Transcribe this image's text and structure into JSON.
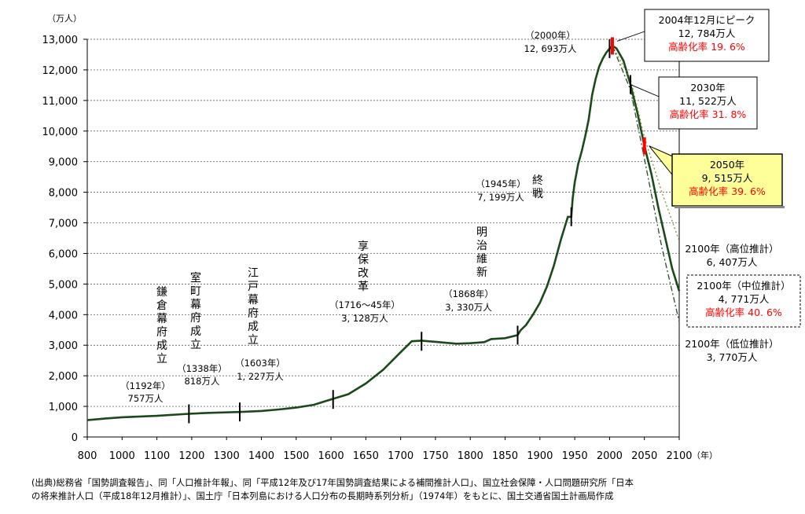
{
  "chart_data": {
    "type": "line",
    "title": "",
    "ylabel": "（万人）",
    "xlabel": "（年）",
    "xlim": [
      800,
      2100
    ],
    "ylim": [
      0,
      13000
    ],
    "x_ticks": [
      "800",
      "1000",
      "1100",
      "1200",
      "1300",
      "1400",
      "1500",
      "1600",
      "1650",
      "1700",
      "1750",
      "1800",
      "1850",
      "1900",
      "1950",
      "2000",
      "2050",
      "2100"
    ],
    "y_ticks": [
      "0",
      "1,000",
      "2,000",
      "3,000",
      "4,000",
      "5,000",
      "6,000",
      "7,000",
      "8,000",
      "9,000",
      "10,000",
      "11,000",
      "12,000",
      "13,000"
    ],
    "grid": true,
    "series": [
      {
        "name": "",
        "style": "solid",
        "color": "#1a4a1a",
        "points": [
          [
            800,
            551
          ],
          [
            900,
            600
          ],
          [
            1000,
            644
          ],
          [
            1100,
            690
          ],
          [
            1192,
            757
          ],
          [
            1250,
            790
          ],
          [
            1338,
            818
          ],
          [
            1400,
            850
          ],
          [
            1450,
            900
          ],
          [
            1500,
            960
          ],
          [
            1550,
            1050
          ],
          [
            1600,
            1227
          ],
          [
            1625,
            1400
          ],
          [
            1650,
            1750
          ],
          [
            1675,
            2200
          ],
          [
            1700,
            2769
          ],
          [
            1716,
            3128
          ],
          [
            1730,
            3150
          ],
          [
            1750,
            3110
          ],
          [
            1780,
            3050
          ],
          [
            1800,
            3065
          ],
          [
            1820,
            3100
          ],
          [
            1830,
            3200
          ],
          [
            1850,
            3230
          ],
          [
            1868,
            3330
          ],
          [
            1872,
            3480
          ],
          [
            1880,
            3660
          ],
          [
            1890,
            4000
          ],
          [
            1900,
            4385
          ],
          [
            1910,
            4918
          ],
          [
            1920,
            5596
          ],
          [
            1930,
            6445
          ],
          [
            1940,
            7193
          ],
          [
            1945,
            7199
          ],
          [
            1947,
            7810
          ],
          [
            1950,
            8320
          ],
          [
            1955,
            8928
          ],
          [
            1960,
            9342
          ],
          [
            1965,
            9827
          ],
          [
            1970,
            10372
          ],
          [
            1975,
            11194
          ],
          [
            1980,
            11706
          ],
          [
            1985,
            12105
          ],
          [
            1990,
            12361
          ],
          [
            1995,
            12557
          ],
          [
            2000,
            12693
          ],
          [
            2004,
            12784
          ],
          [
            2010,
            12700
          ],
          [
            2020,
            12300
          ],
          [
            2030,
            11522
          ],
          [
            2040,
            10600
          ],
          [
            2050,
            9515
          ],
          [
            2060,
            8600
          ],
          [
            2070,
            7500
          ],
          [
            2080,
            6500
          ],
          [
            2090,
            5500
          ],
          [
            2100,
            4771
          ]
        ]
      },
      {
        "name": "",
        "style": "dotted",
        "color": "#8a8a30",
        "points": [
          [
            2004,
            12784
          ],
          [
            2030,
            11700
          ],
          [
            2050,
            9800
          ],
          [
            2075,
            8000
          ],
          [
            2100,
            6407
          ]
        ]
      },
      {
        "name": "",
        "style": "dashdot",
        "color": "#2a4a2a",
        "points": [
          [
            2004,
            12784
          ],
          [
            2030,
            11350
          ],
          [
            2050,
            9100
          ],
          [
            2075,
            6200
          ],
          [
            2100,
            3770
          ]
        ]
      }
    ],
    "annotations": {
      "kamakura": {
        "title": "鎌倉幕府成立",
        "year": "（1192年）",
        "value": "757万人",
        "x": 1192,
        "y": 757
      },
      "muromachi": {
        "title": "室町幕府成立",
        "year": "（1338年）",
        "value": "818万人",
        "x": 1338,
        "y": 818
      },
      "edo": {
        "title": "江戸幕府成立",
        "year": "（1603年）",
        "value": "1, 227万人",
        "x": 1603,
        "y": 1227
      },
      "kyoho": {
        "title": "享保改革",
        "year": "（1716～45年）",
        "value": "3, 128万人",
        "x": 1730,
        "y": 3128
      },
      "meiji": {
        "title": "明治維新",
        "year": "（1868年）",
        "value": "3, 330万人",
        "x": 1868,
        "y": 3330
      },
      "shusen": {
        "title": "終戦",
        "year": "（1945年）",
        "value": "7, 199万人",
        "x": 1945,
        "y": 7199
      },
      "y2000": {
        "year": "（2000年）",
        "value": "12, 693万人",
        "x": 2000,
        "y": 12693
      },
      "peak": {
        "line1": "2004年12月にピーク",
        "line2": "12, 784万人",
        "line3": "高齢化率 19. 6%",
        "x": 2004,
        "y": 12784
      },
      "y2030": {
        "line1": "2030年",
        "line2": "11, 522万人",
        "line3": "高齢化率 31. 8%",
        "x": 2030,
        "y": 11522
      },
      "y2050": {
        "line1": "2050年",
        "line2": "9, 515万人",
        "line3": "高齢化率 39. 6%",
        "x": 2050,
        "y": 9515
      },
      "high2100": {
        "line1": "2100年（高位推計）",
        "line2": "6, 407万人"
      },
      "mid2100": {
        "line1": "2100年（中位推計）",
        "line2": "4, 771万人",
        "line3": "高齢化率 40. 6%"
      },
      "low2100": {
        "line1": "2100年（低位推計）",
        "line2": "3, 770万人"
      }
    }
  },
  "source": {
    "line1": "(出典)総務省「国勢調査報告」、同「人口推計年報」、同「平成12年及び17年国勢調査結果による補間推計人口」、国立社会保障・人口問題研究所「日本",
    "line2": "の将来推計人口（平成18年12月推計）」、国土庁「日本列島における人口分布の長期時系列分析」（1974年）をもとに、国土交通省国土計画局作成"
  },
  "colors": {
    "main_line": "#1a4a1a",
    "highlight": "#ff0000",
    "callout_fill": "#ffff99"
  }
}
